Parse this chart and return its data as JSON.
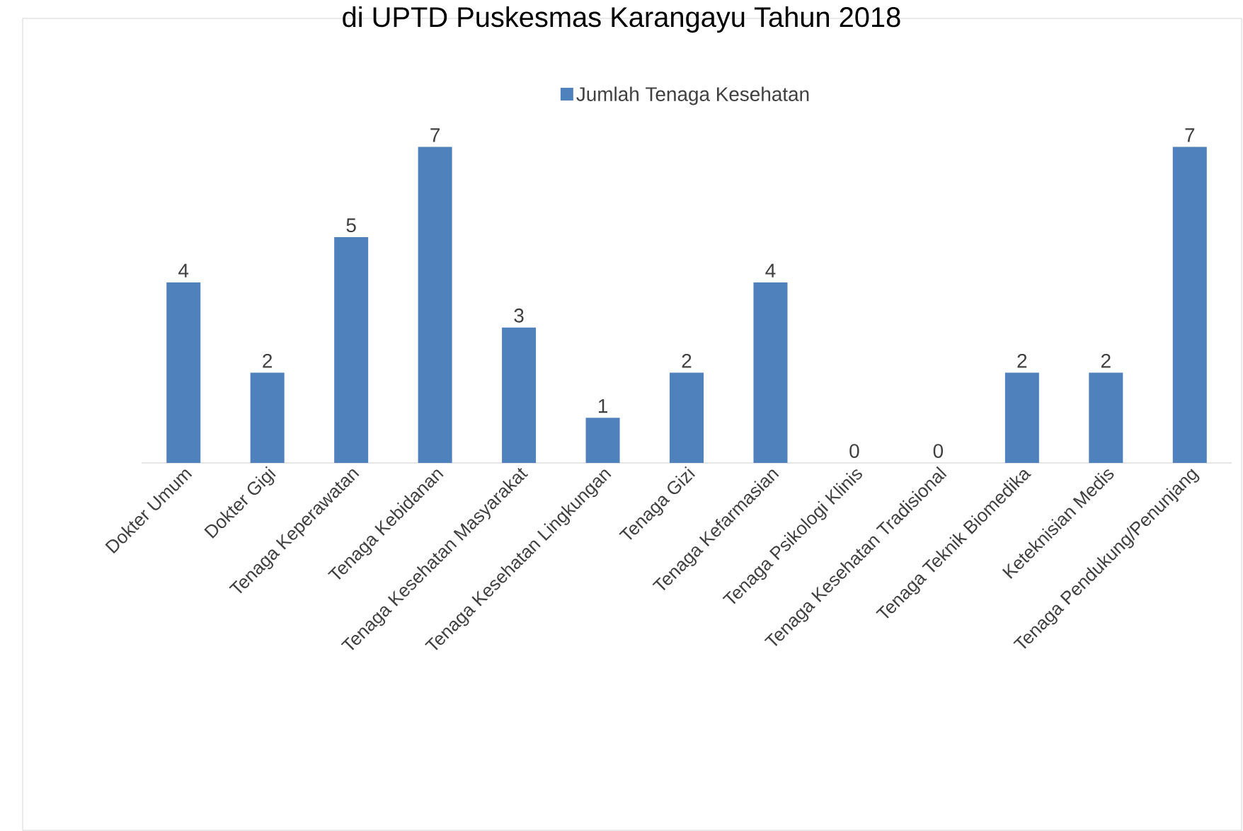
{
  "chart_data": {
    "type": "bar",
    "title": "di UPTD Puskesmas Karangayu Tahun 2018",
    "categories": [
      "Dokter Umum",
      "Dokter Gigi",
      "Tenaga Keperawatan",
      "Tenaga Kebidanan",
      "Tenaga Kesehatan Masyarakat",
      "Tenaga Kesehatan Lingkungan",
      "Tenaga Gizi",
      "Tenaga Kefarmasian",
      "Tenaga Psikologi Klinis",
      "Tenaga Kesehatan Tradisional",
      "Tenaga Teknik Biomedika",
      "Keteknisian Medis",
      "Tenaga Pendukung/Penunjang"
    ],
    "series": [
      {
        "name": "Jumlah Tenaga Kesehatan",
        "color": "#4f81bd",
        "values": [
          4,
          2,
          5,
          7,
          3,
          1,
          2,
          4,
          0,
          0,
          2,
          2,
          7
        ]
      }
    ],
    "data_labels": true,
    "legend": "top"
  }
}
